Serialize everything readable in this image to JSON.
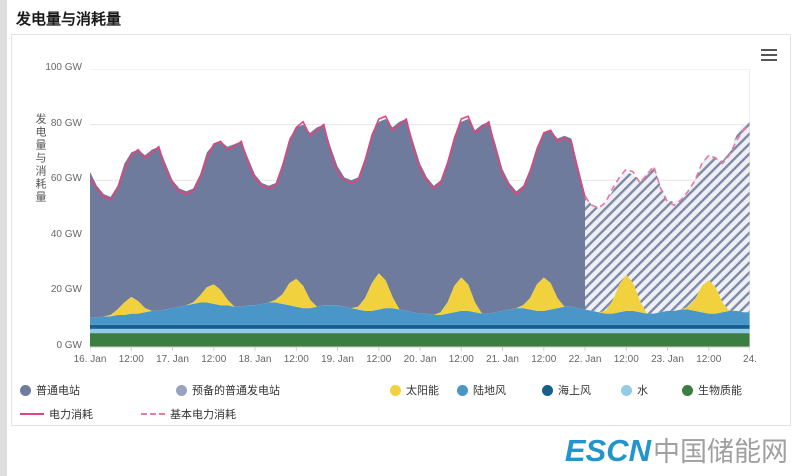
{
  "header": {
    "title": "发电量与消耗量"
  },
  "menu": {
    "icon": "hamburger-menu-icon"
  },
  "footer": {
    "logo_primary": "ESCN",
    "logo_secondary": "中国储能网"
  },
  "legend": {
    "series": [
      {
        "label": "普通电站",
        "color": "#6f7b9c"
      },
      {
        "label": "预备的普通发电站",
        "color": "#9aa3bd"
      },
      {
        "label": "太阳能",
        "color": "#f2d13e"
      },
      {
        "label": "陆地风",
        "color": "#4a96c8"
      },
      {
        "label": "海上风",
        "color": "#16608f"
      },
      {
        "label": "水",
        "color": "#93cbe8"
      },
      {
        "label": "生物质能",
        "color": "#3c7d41"
      }
    ],
    "lines": [
      {
        "label": "电力消耗",
        "color": "#e0457b",
        "dash": false
      },
      {
        "label": "基本电力消耗",
        "color": "#e87ba0",
        "dash": true
      }
    ]
  },
  "chart_data": {
    "type": "area",
    "title": "发电量与消耗量",
    "ylabel": "发电量与消耗量",
    "ylim": [
      0,
      100
    ],
    "grid": true,
    "legend_position": "bottom",
    "y_ticks": [
      "100 GW",
      "80 GW",
      "60 GW",
      "40 GW",
      "20 GW",
      "0 GW"
    ],
    "x_ticks": [
      "16. Jan",
      "12:00",
      "17. Jan",
      "12:00",
      "18. Jan",
      "12:00",
      "19. Jan",
      "12:00",
      "20. Jan",
      "12:00",
      "21. Jan",
      "12:00",
      "22. Jan",
      "12:00",
      "23. Jan",
      "12:00",
      "24."
    ],
    "hours_step": 2,
    "hours_total": 192,
    "forecast_start_index": 72,
    "series": {
      "biomass": {
        "name": "生物质能",
        "color": "#3c7d41",
        "value": 5
      },
      "water": {
        "name": "水",
        "color": "#93cbe8",
        "value": 1.5
      },
      "offshore": {
        "name": "海上风",
        "color": "#16608f",
        "value": 1.5
      },
      "onshore": {
        "name": "陆地风",
        "color": "#4a96c8",
        "values": [
          2.5,
          2.5,
          3,
          3,
          3.5,
          3.5,
          4,
          4,
          4.5,
          5,
          5,
          5.5,
          6,
          6.5,
          7,
          7.5,
          8,
          8,
          7.5,
          7,
          7,
          6.5,
          6.5,
          7,
          7,
          7.5,
          8,
          8,
          7.5,
          7,
          6.5,
          6,
          6,
          6.5,
          7,
          7,
          7,
          6.5,
          6,
          5.5,
          5,
          5,
          5.5,
          6,
          6,
          5.5,
          5,
          4.5,
          4,
          4,
          3.5,
          3.5,
          4,
          4.5,
          5,
          5,
          4.5,
          4,
          4,
          4.5,
          5,
          5.5,
          6,
          6,
          5.5,
          5,
          5,
          5.5,
          6,
          6.5,
          6.5,
          6,
          5.5,
          5,
          4.5,
          4,
          4,
          4.5,
          5,
          5,
          4.5,
          4,
          4,
          4.5,
          5,
          5,
          5.5,
          5.5,
          5,
          4.5,
          4,
          4,
          4.5,
          5,
          5,
          4.5,
          4.5
        ]
      },
      "solar": {
        "name": "太阳能",
        "color": "#f2d13e",
        "values": [
          0,
          0,
          0,
          0.5,
          2,
          4.5,
          6,
          4.5,
          1.5,
          0,
          0,
          0,
          0,
          0,
          0,
          0.5,
          2.5,
          5.5,
          7,
          5.5,
          2,
          0,
          0,
          0,
          0,
          0,
          0,
          1,
          3.5,
          8,
          10,
          8,
          3,
          0,
          0,
          0,
          0,
          0,
          0,
          1,
          4.5,
          10,
          13,
          10,
          4,
          0,
          0,
          0,
          0,
          0,
          0,
          1,
          4,
          9.5,
          12,
          9.5,
          3.5,
          0,
          0,
          0,
          0,
          0,
          0,
          1,
          4,
          9.5,
          12,
          9.5,
          3.5,
          0,
          0,
          0,
          0,
          0,
          0,
          1,
          4.5,
          10,
          13,
          10,
          4,
          0,
          0,
          0,
          0,
          0,
          0,
          1,
          4,
          9.5,
          12,
          9.5,
          3.5,
          0,
          0,
          0,
          0
        ]
      },
      "conventional": {
        "name": "普通电站",
        "color": "#6f7b9c"
      },
      "conventional_reserve": {
        "name": "预备的普通发电站",
        "fill_bg": "#eef0f5",
        "fill_line": "#7e89a7"
      }
    },
    "total_generation": [
      63,
      58,
      55,
      54,
      58,
      66,
      70,
      71,
      69,
      71,
      72,
      66,
      60,
      57,
      56,
      57,
      62,
      70,
      73,
      74,
      72,
      73,
      74,
      68,
      62,
      59,
      58,
      59,
      66,
      75,
      79,
      80,
      77,
      79,
      80,
      72,
      65,
      61,
      60,
      61,
      68,
      77,
      81,
      82,
      79,
      81,
      82,
      74,
      66,
      61,
      58,
      60,
      67,
      76,
      81,
      82,
      78,
      80,
      81,
      73,
      64,
      59,
      56,
      58,
      64,
      72,
      77,
      78,
      75,
      76,
      75,
      65,
      55,
      51,
      50,
      52,
      56,
      61,
      63,
      62,
      60,
      63,
      65,
      58,
      53,
      52,
      54,
      56,
      60,
      66,
      69,
      68,
      67,
      70,
      76,
      80,
      81
    ],
    "consumption": {
      "name": "电力消耗",
      "color": "#e0457b",
      "values": [
        61,
        57,
        54,
        53,
        57,
        64,
        69,
        71,
        68,
        70,
        72,
        64,
        59,
        56,
        55,
        56,
        61,
        68,
        73,
        74,
        71,
        72,
        74,
        66,
        61,
        58,
        57,
        58,
        65,
        74,
        79,
        81,
        76,
        78,
        80,
        70,
        63,
        60,
        59,
        60,
        67,
        76,
        82,
        83,
        78,
        80,
        82,
        72,
        64,
        60,
        57,
        59,
        66,
        75,
        82,
        83,
        77,
        79,
        81,
        71,
        62,
        58,
        55,
        57,
        63,
        71,
        77,
        78,
        74,
        75,
        74,
        63,
        54
      ]
    },
    "base_consumption": {
      "name": "基本电力消耗",
      "color": "#e87ba0",
      "dash": true,
      "values": [
        54,
        51,
        50,
        52,
        57,
        61,
        64,
        63,
        59,
        62,
        65,
        57,
        52,
        51,
        53,
        56,
        60,
        66,
        69,
        68,
        66,
        69,
        74,
        78,
        80
      ]
    }
  }
}
